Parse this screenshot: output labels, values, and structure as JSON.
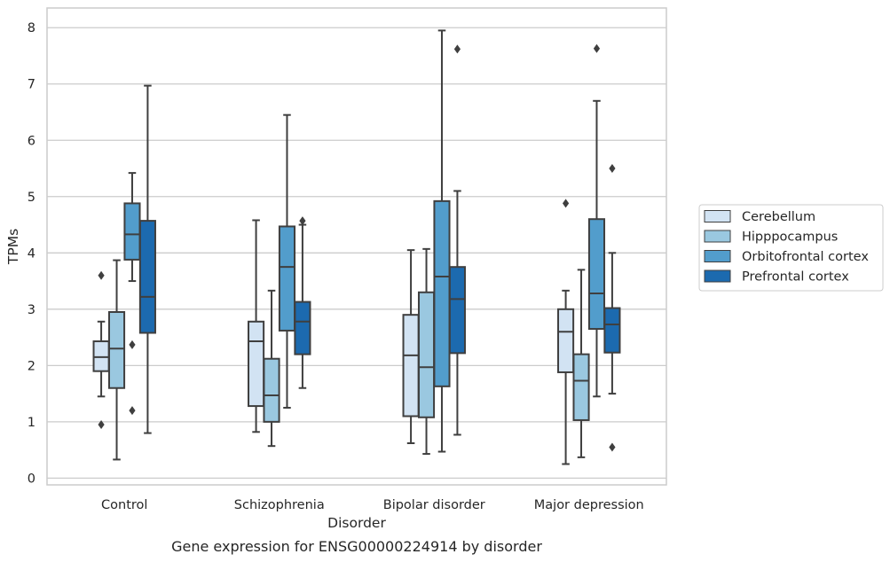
{
  "chart_data": {
    "type": "box",
    "caption": "Gene expression for ENSG00000224914 by disorder",
    "xlabel": "Disorder",
    "ylabel": "TPMs",
    "ylim": [
      -0.12,
      8.35
    ],
    "yticks": [
      0,
      1,
      2,
      3,
      4,
      5,
      6,
      7,
      8
    ],
    "grid": true,
    "legend_position": "right",
    "categories": [
      "Control",
      "Schizophrenia",
      "Bipolar disorder",
      "Major depression"
    ],
    "series": [
      {
        "name": "Cerebellum",
        "color": "#d2e3f3",
        "boxes": [
          {
            "whislo": 1.45,
            "q1": 1.9,
            "med": 2.15,
            "q3": 2.43,
            "whishi": 2.78,
            "fliers": [
              3.6,
              0.95
            ]
          },
          {
            "whislo": 0.82,
            "q1": 1.28,
            "med": 2.43,
            "q3": 2.78,
            "whishi": 4.58,
            "fliers": []
          },
          {
            "whislo": 0.62,
            "q1": 1.1,
            "med": 2.18,
            "q3": 2.9,
            "whishi": 4.05,
            "fliers": []
          },
          {
            "whislo": 0.25,
            "q1": 1.88,
            "med": 2.6,
            "q3": 3.0,
            "whishi": 3.33,
            "fliers": [
              4.88
            ]
          }
        ]
      },
      {
        "name": "Hipppocampus",
        "color": "#9ac8e0",
        "boxes": [
          {
            "whislo": 0.33,
            "q1": 1.6,
            "med": 2.3,
            "q3": 2.95,
            "whishi": 3.87,
            "fliers": []
          },
          {
            "whislo": 0.57,
            "q1": 1.0,
            "med": 1.47,
            "q3": 2.12,
            "whishi": 3.33,
            "fliers": []
          },
          {
            "whislo": 0.43,
            "q1": 1.08,
            "med": 1.97,
            "q3": 3.3,
            "whishi": 4.07,
            "fliers": []
          },
          {
            "whislo": 0.37,
            "q1": 1.03,
            "med": 1.73,
            "q3": 2.2,
            "whishi": 3.7,
            "fliers": []
          }
        ]
      },
      {
        "name": "Orbitofrontal cortex",
        "color": "#529dcc",
        "boxes": [
          {
            "whislo": 3.5,
            "q1": 3.88,
            "med": 4.33,
            "q3": 4.88,
            "whishi": 5.42,
            "fliers": [
              2.37,
              1.2
            ]
          },
          {
            "whislo": 1.25,
            "q1": 2.62,
            "med": 3.75,
            "q3": 4.47,
            "whishi": 6.45,
            "fliers": []
          },
          {
            "whislo": 0.47,
            "q1": 1.63,
            "med": 3.58,
            "q3": 4.92,
            "whishi": 7.95,
            "fliers": []
          },
          {
            "whislo": 1.45,
            "q1": 2.65,
            "med": 3.28,
            "q3": 4.6,
            "whishi": 6.7,
            "fliers": [
              7.63
            ]
          }
        ]
      },
      {
        "name": "Prefrontal cortex",
        "color": "#1c6aaf",
        "boxes": [
          {
            "whislo": 0.8,
            "q1": 2.58,
            "med": 3.22,
            "q3": 4.57,
            "whishi": 6.97,
            "fliers": []
          },
          {
            "whislo": 1.6,
            "q1": 2.2,
            "med": 2.78,
            "q3": 3.13,
            "whishi": 4.5,
            "fliers": [
              4.57
            ]
          },
          {
            "whislo": 0.77,
            "q1": 2.22,
            "med": 3.18,
            "q3": 3.75,
            "whishi": 5.1,
            "fliers": [
              7.62
            ]
          },
          {
            "whislo": 1.5,
            "q1": 2.23,
            "med": 2.73,
            "q3": 3.02,
            "whishi": 4.0,
            "fliers": [
              5.5,
              0.55
            ]
          }
        ]
      }
    ]
  }
}
